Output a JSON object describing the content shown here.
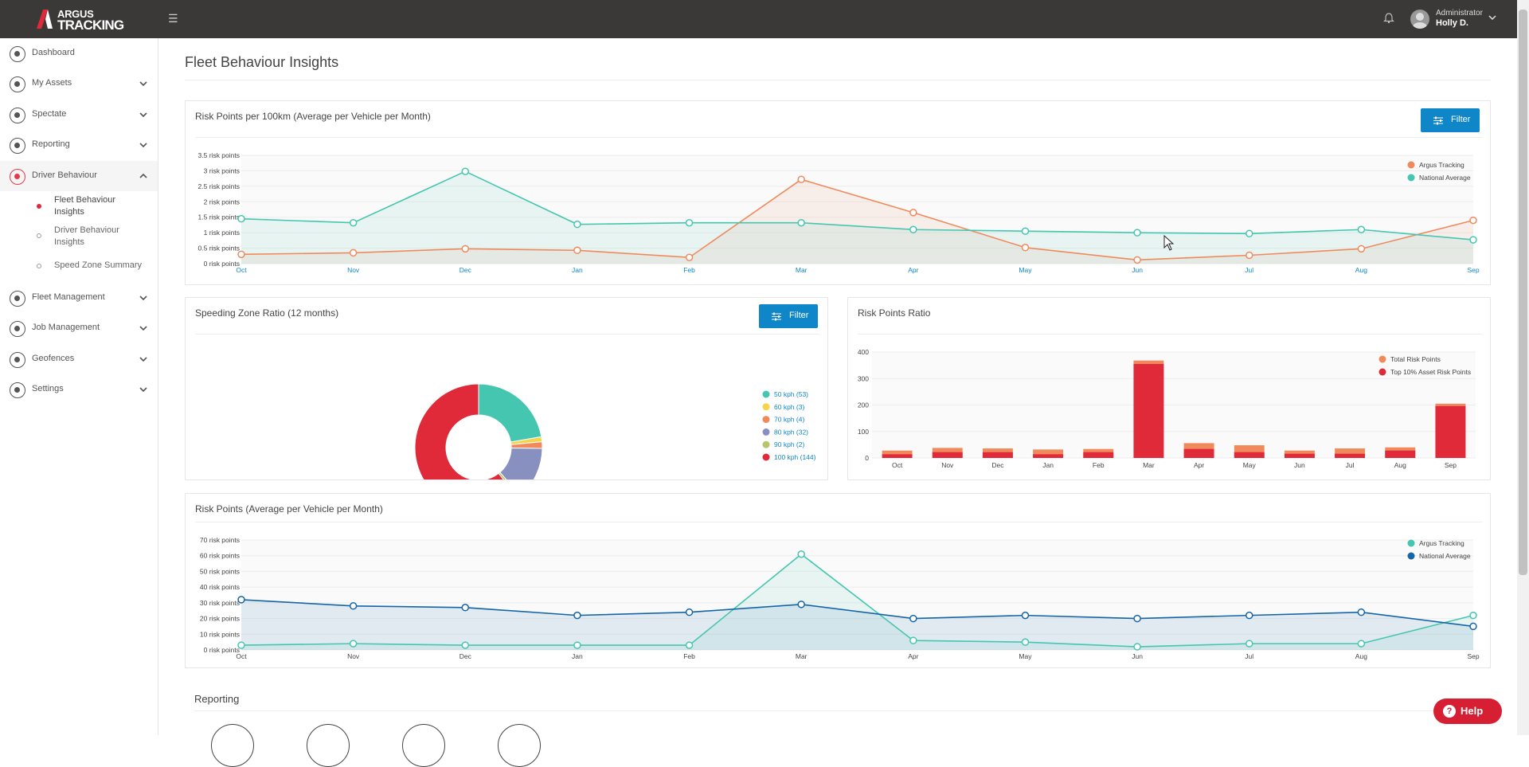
{
  "brand": {
    "line1": "ARGUS",
    "line2": "TRACKING"
  },
  "user": {
    "role": "Administrator",
    "name": "Holly D."
  },
  "sidebar": {
    "items": [
      {
        "label": "Dashboard"
      },
      {
        "label": "My Assets"
      },
      {
        "label": "Spectate"
      },
      {
        "label": "Reporting"
      },
      {
        "label": "Driver Behaviour"
      },
      {
        "label": "Fleet Management"
      },
      {
        "label": "Job Management"
      },
      {
        "label": "Geofences"
      },
      {
        "label": "Settings"
      }
    ],
    "sub_items": [
      {
        "label": "Fleet Behaviour Insights"
      },
      {
        "label": "Driver Behaviour Insights"
      },
      {
        "label": "Speed Zone Summary"
      }
    ]
  },
  "page": {
    "title": "Fleet Behaviour Insights"
  },
  "cards": {
    "risk100": {
      "title": "Risk Points per 100km (Average per Vehicle per Month)",
      "filter_label": "Filter"
    },
    "speeding": {
      "title": "Speeding Zone Ratio (12 months)",
      "filter_label": "Filter"
    },
    "riskRatio": {
      "title": "Risk Points Ratio"
    },
    "riskAvg": {
      "title": "Risk Points (Average per Vehicle per Month)"
    }
  },
  "reporting": {
    "title": "Reporting"
  },
  "help": {
    "label": "Help"
  },
  "colors": {
    "argus_orange": "#f08a5d",
    "national_teal": "#45c6b0",
    "red": "#e02a3a",
    "blue": "#1565a8",
    "filter_blue": "#0f86c7"
  },
  "chart_data": [
    {
      "type": "line",
      "title": "Risk Points per 100km (Average per Vehicle per Month)",
      "categories": [
        "Oct",
        "Nov",
        "Dec",
        "Jan",
        "Feb",
        "Mar",
        "Apr",
        "May",
        "Jun",
        "Jul",
        "Aug",
        "Sep"
      ],
      "yticks": [
        "0 risk points",
        "0.5 risk points",
        "1 risk points",
        "1.5 risk points",
        "2 risk points",
        "2.5 risk points",
        "3 risk points",
        "3.5 risk points"
      ],
      "ylim": [
        0,
        3.5
      ],
      "series": [
        {
          "name": "Argus Tracking",
          "color": "#f08a5d",
          "values": [
            0.3,
            0.35,
            0.48,
            0.43,
            0.2,
            2.72,
            1.65,
            0.52,
            0.12,
            0.27,
            0.48,
            1.4
          ]
        },
        {
          "name": "National Average",
          "color": "#45c6b0",
          "values": [
            1.45,
            1.32,
            2.98,
            1.27,
            1.32,
            1.32,
            1.1,
            1.05,
            1.0,
            0.97,
            1.1,
            0.77
          ]
        }
      ],
      "legend": "top-right"
    },
    {
      "type": "pie",
      "title": "Speeding Zone Ratio (12 months)",
      "slices": [
        {
          "label": "50 kph (53)",
          "value": 53,
          "color": "#45c6b0"
        },
        {
          "label": "60 kph (3)",
          "value": 3,
          "color": "#f5d44a"
        },
        {
          "label": "70 kph (4)",
          "value": 4,
          "color": "#f08a5d"
        },
        {
          "label": "80 kph (32)",
          "value": 32,
          "color": "#8890c0"
        },
        {
          "label": "90 kph (2)",
          "value": 2,
          "color": "#b9c46a"
        },
        {
          "label": "100 kph (144)",
          "value": 144,
          "color": "#e02a3a"
        }
      ],
      "legend": "right"
    },
    {
      "type": "bar",
      "title": "Risk Points Ratio",
      "categories": [
        "Oct",
        "Nov",
        "Dec",
        "Jan",
        "Feb",
        "Mar",
        "Apr",
        "May",
        "Jun",
        "Jul",
        "Aug",
        "Sep"
      ],
      "yticks": [
        "0",
        "100",
        "200",
        "300",
        "400"
      ],
      "ylim": [
        0,
        400
      ],
      "series": [
        {
          "name": "Total Risk Points",
          "color": "#f08a5d",
          "values": [
            28,
            38,
            36,
            32,
            34,
            368,
            56,
            48,
            28,
            36,
            40,
            205
          ]
        },
        {
          "name": "Top 10% Asset Risk Points",
          "color": "#e02a3a",
          "values": [
            14,
            22,
            22,
            14,
            22,
            355,
            34,
            22,
            16,
            16,
            28,
            196
          ]
        }
      ],
      "legend": "top-right"
    },
    {
      "type": "line",
      "title": "Risk Points (Average per Vehicle per Month)",
      "categories": [
        "Oct",
        "Nov",
        "Dec",
        "Jan",
        "Feb",
        "Mar",
        "Apr",
        "May",
        "Jun",
        "Jul",
        "Aug",
        "Sep"
      ],
      "yticks": [
        "0 risk points",
        "10 risk points",
        "20 risk points",
        "30 risk points",
        "40 risk points",
        "50 risk points",
        "60 risk points",
        "70 risk points"
      ],
      "ylim": [
        0,
        70
      ],
      "series": [
        {
          "name": "Argus Tracking",
          "color": "#45c6b0",
          "values": [
            3,
            4,
            3,
            3,
            3,
            61,
            6,
            5,
            2,
            4,
            4,
            22
          ]
        },
        {
          "name": "National Average",
          "color": "#1565a8",
          "values": [
            32,
            28,
            27,
            22,
            24,
            29,
            20,
            22,
            20,
            22,
            24,
            15
          ]
        }
      ],
      "legend": "top-right"
    }
  ]
}
